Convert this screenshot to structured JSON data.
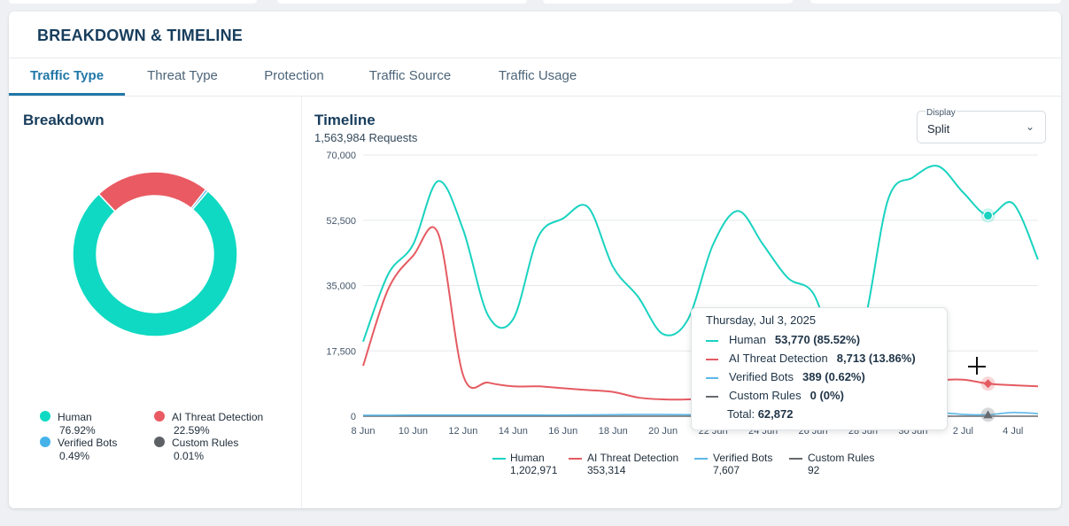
{
  "card": {
    "title": "BREAKDOWN & TIMELINE"
  },
  "tabs": [
    {
      "label": "Traffic Type",
      "active": true
    },
    {
      "label": "Threat Type"
    },
    {
      "label": "Protection"
    },
    {
      "label": "Traffic Source"
    },
    {
      "label": "Traffic Usage"
    }
  ],
  "breakdown": {
    "title": "Breakdown",
    "items": [
      {
        "name": "Human",
        "pct": "76.92%",
        "value": 76.92,
        "color": "#0fd9c2"
      },
      {
        "name": "AI Threat Detection",
        "pct": "22.59%",
        "value": 22.59,
        "color": "#ea5a62"
      },
      {
        "name": "Verified Bots",
        "pct": "0.49%",
        "value": 0.49,
        "color": "#45b3ea"
      },
      {
        "name": "Custom Rules",
        "pct": "0.01%",
        "value": 0.01,
        "color": "#5d6166"
      }
    ]
  },
  "timeline": {
    "title": "Timeline",
    "requests": "1,563,984 Requests",
    "display": {
      "label": "Display",
      "value": "Split",
      "chevron": "chevron-down-icon"
    }
  },
  "chart_data": {
    "type": "line",
    "x": [
      "Jun 8",
      "Jun 9",
      "Jun 10",
      "Jun 11",
      "Jun 12",
      "Jun 13",
      "Jun 14",
      "Jun 15",
      "Jun 16",
      "Jun 17",
      "Jun 18",
      "Jun 19",
      "Jun 20",
      "Jun 21",
      "Jun 22",
      "Jun 23",
      "Jun 24",
      "Jun 25",
      "Jun 26",
      "Jun 27",
      "Jun 28",
      "Jun 29",
      "Jun 30",
      "Jul 1",
      "Jul 2",
      "Jul 3",
      "Jul 4",
      "Jul 5"
    ],
    "x_tick_labels": [
      "8 Jun",
      "10 Jun",
      "12 Jun",
      "14 Jun",
      "16 Jun",
      "18 Jun",
      "20 Jun",
      "22 Jun",
      "24 Jun",
      "26 Jun",
      "28 Jun",
      "30 Jun",
      "2 Jul",
      "4 Jul"
    ],
    "y_ticks": [
      0,
      17500,
      35000,
      52500,
      70000
    ],
    "y_tick_labels": [
      "0",
      "17,500",
      "35,000",
      "52,500",
      "70,000"
    ],
    "ylim": [
      0,
      70000
    ],
    "series": [
      {
        "name": "Human",
        "color": "#19d3c0",
        "total": "1,202,971",
        "values": [
          20000,
          38000,
          46000,
          63000,
          50000,
          27000,
          26000,
          48000,
          53000,
          56000,
          40000,
          32000,
          22000,
          26000,
          46000,
          55000,
          46000,
          37000,
          33000,
          17000,
          24000,
          58000,
          64000,
          67000,
          60000,
          53770,
          57000,
          42000
        ]
      },
      {
        "name": "AI Threat Detection",
        "color": "#e55b62",
        "total": "353,314",
        "values": [
          13500,
          34000,
          43000,
          49000,
          11000,
          9000,
          8000,
          8000,
          7500,
          7000,
          6500,
          5000,
          4500,
          4500,
          5000,
          5500,
          6000,
          6500,
          7000,
          7500,
          7000,
          7500,
          8000,
          9500,
          9800,
          8713,
          8300,
          8000
        ]
      },
      {
        "name": "Verified Bots",
        "color": "#5cb8e8",
        "total": "7,607",
        "values": [
          250,
          250,
          300,
          300,
          300,
          300,
          300,
          300,
          300,
          350,
          400,
          450,
          450,
          400,
          400,
          400,
          400,
          400,
          400,
          400,
          400,
          400,
          400,
          900,
          500,
          389,
          1000,
          700
        ]
      },
      {
        "name": "Custom Rules",
        "color": "#666a6f",
        "total": "92",
        "values": [
          0,
          0,
          0,
          0,
          0,
          0,
          0,
          0,
          0,
          0,
          0,
          0,
          0,
          0,
          0,
          0,
          0,
          0,
          0,
          0,
          0,
          0,
          0,
          0,
          0,
          0,
          0,
          0
        ]
      }
    ],
    "highlight_index": 25
  },
  "tooltip": {
    "date": "Thursday, Jul 3,  2025",
    "rows": [
      {
        "name": "Human",
        "value": "53,770 (85.52%)",
        "color": "#19d3c0"
      },
      {
        "name": "AI Threat Detection",
        "value": "8,713 (13.86%)",
        "color": "#e55b62"
      },
      {
        "name": "Verified Bots",
        "value": "389 (0.62%)",
        "color": "#5cb8e8"
      },
      {
        "name": "Custom Rules",
        "value": "0 (0%)",
        "color": "#666a6f"
      }
    ],
    "total_label": "Total:",
    "total_value": "62,872"
  }
}
